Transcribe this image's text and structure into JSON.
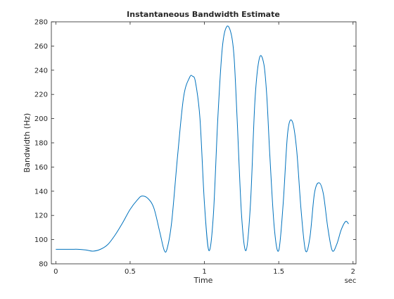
{
  "chart_data": {
    "type": "line",
    "title": "Instantaneous Bandwidth Estimate",
    "xlabel": "Time",
    "ylabel": "Bandwidth (Hz)",
    "x_unit": "sec",
    "xlim": [
      -0.03,
      2.02
    ],
    "ylim": [
      80,
      280
    ],
    "xticks": [
      0,
      0.5,
      1,
      1.5,
      2
    ],
    "xtick_labels": [
      "0",
      "0.5",
      "1",
      "1.5",
      "2"
    ],
    "yticks": [
      80,
      100,
      120,
      140,
      160,
      180,
      200,
      220,
      240,
      260,
      280
    ],
    "ytick_labels": [
      "80",
      "100",
      "120",
      "140",
      "160",
      "180",
      "200",
      "220",
      "240",
      "260",
      "280"
    ],
    "grid": false,
    "line_color": "#0072BD",
    "series": [
      {
        "x": [
          0.0,
          0.1,
          0.15,
          0.2,
          0.25,
          0.3,
          0.35,
          0.4,
          0.45,
          0.5,
          0.55,
          0.58,
          0.62,
          0.66,
          0.7,
          0.73,
          0.75,
          0.78,
          0.82,
          0.86,
          0.9,
          0.92,
          0.94,
          0.97,
          1.0,
          1.03,
          1.06,
          1.09,
          1.12,
          1.15,
          1.18,
          1.2,
          1.22,
          1.25,
          1.28,
          1.31,
          1.34,
          1.37,
          1.4,
          1.42,
          1.44,
          1.47,
          1.5,
          1.53,
          1.56,
          1.59,
          1.62,
          1.65,
          1.68,
          1.71,
          1.74,
          1.77,
          1.8,
          1.83,
          1.86,
          1.89,
          1.92,
          1.95,
          1.97
        ],
        "y": [
          92,
          92,
          92,
          91.5,
          90.5,
          92,
          96,
          104,
          114,
          125,
          133,
          136,
          134,
          126,
          106,
          91,
          93,
          115,
          170,
          218,
          234,
          235,
          230,
          200,
          130,
          91,
          120,
          200,
          258,
          276,
          270,
          250,
          200,
          120,
          91,
          130,
          215,
          250,
          245,
          218,
          170,
          110,
          91,
          130,
          188,
          198,
          175,
          125,
          91,
          102,
          138,
          147,
          138,
          110,
          91,
          96,
          108,
          115,
          113
        ]
      }
    ]
  }
}
